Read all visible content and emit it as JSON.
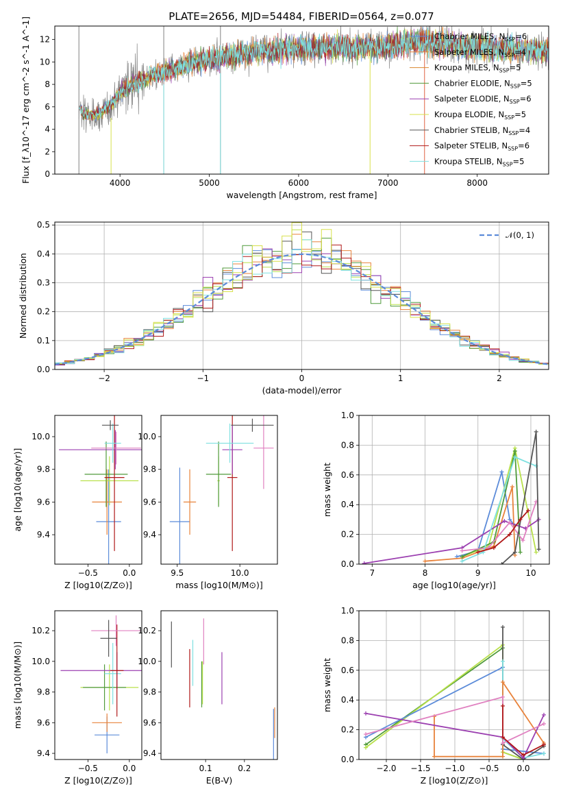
{
  "title": "PLATE=2656, MJD=54484, FIBERID=0564, z=0.077",
  "colors": {
    "chabrier_miles": "#5b8bd9",
    "salpeter_miles": "#e8823a",
    "kroupa_miles": "#d9862e",
    "chabrier_elodie": "#4f9a3a",
    "salpeter_elodie": "#9b3fb0",
    "kroupa_elodie": "#d7e04a",
    "chabrier_stelib": "#555555",
    "salpeter_stelib": "#b01818",
    "kroupa_stelib": "#7ee0e0",
    "data": "#808080",
    "pink": "#e080c0",
    "lime": "#b8e04a"
  },
  "chart_data": [
    {
      "id": "spectrum",
      "type": "line",
      "title": "PLATE=2656, MJD=54484, FIBERID=0564, z=0.077",
      "xlabel": "wavelength [Angstrom, rest frame]",
      "ylabel": "Flux [f_λ10^-17 erg cm^-2 s^-1 A^-1]",
      "xlim": [
        3270,
        8800
      ],
      "ylim": [
        0,
        13.2
      ],
      "xticks": [
        "4000",
        "5000",
        "6000",
        "7000",
        "8000"
      ],
      "yticks": [
        "0",
        "2",
        "4",
        "6",
        "8",
        "10",
        "12"
      ],
      "grid": false,
      "legend_position": "top-right",
      "legend": [
        "Chabrier MILES, N_SSP=6",
        "Salpeter MILES, N_SSP=4",
        "Kroupa MILES, N_SSP=5",
        "Chabrier ELODIE, N_SSP=5",
        "Salpeter ELODIE, N_SSP=6",
        "Kroupa ELODIE, N_SSP=5",
        "Chabrier STELIB, N_SSP=4",
        "Salpeter STELIB, N_SSP=6",
        "Kroupa STELIB, N_SSP=5"
      ],
      "continuum": {
        "x": [
          3540,
          3600,
          3700,
          3800,
          3900,
          4000,
          4200,
          4400,
          4600,
          4800,
          5000,
          5200,
          5500,
          5800,
          6000,
          6300,
          6600,
          7000,
          7300,
          7500,
          7800,
          8000,
          8300,
          8500,
          8800
        ],
        "y": [
          5.8,
          5.4,
          5.2,
          5.6,
          6.2,
          7.3,
          8.3,
          8.9,
          9.4,
          9.9,
          10.2,
          10.5,
          10.9,
          11.1,
          11.2,
          11.3,
          11.3,
          11.4,
          11.8,
          11.7,
          11.4,
          11.3,
          11.2,
          11.1,
          11.0
        ]
      }
    },
    {
      "id": "residuals",
      "type": "line",
      "xlabel": "(data-model)/error",
      "ylabel": "Normed distribution",
      "xlim": [
        -2.5,
        2.5
      ],
      "ylim": [
        0,
        0.51
      ],
      "xticks": [
        "−2",
        "−1",
        "0",
        "1",
        "2"
      ],
      "yticks": [
        "0.0",
        "0.1",
        "0.2",
        "0.3",
        "0.4",
        "0.5"
      ],
      "grid": true,
      "legend_position": "top-right",
      "legend": [
        "𝒩(0, 1)"
      ],
      "bin_width": 0.1
    },
    {
      "id": "age_vs_Z",
      "type": "scatter",
      "xlabel": "Z [log10(Z/Z⊙)]",
      "ylabel": "age  [log10(age/yr)]",
      "xlim": [
        -0.9,
        0.15
      ],
      "ylim": [
        9.22,
        10.13
      ],
      "xticks": [
        "−0.5",
        "0.0"
      ],
      "yticks": [
        "9.4",
        "9.6",
        "9.8",
        "10.0"
      ],
      "series": [
        {
          "color": "#5b8bd9",
          "x": -0.25,
          "y": 9.48,
          "xerr": 0.15,
          "yerr": 0.32
        },
        {
          "color": "#e8823a",
          "x": -0.27,
          "y": 9.6,
          "xerr": 0.18,
          "yerr": 0.2
        },
        {
          "color": "#b8e04a",
          "x": -0.24,
          "y": 9.73,
          "xerr": 0.35,
          "yerr": 0.15
        },
        {
          "color": "#4f9a3a",
          "x": -0.28,
          "y": 9.77,
          "xerr": 0.26,
          "yerr": 0.2
        },
        {
          "color": "#b01818",
          "x": -0.18,
          "y": 9.75,
          "xerr": 0.12,
          "yerr": 0.45
        },
        {
          "color": "#9b3fb0",
          "x": -0.17,
          "y": 9.92,
          "xerr": 0.68,
          "yerr": 0.12
        },
        {
          "color": "#e080c0",
          "x": -0.16,
          "y": 9.93,
          "xerr": 0.3,
          "yerr": 0.1
        },
        {
          "color": "#7ee0e0",
          "x": -0.2,
          "y": 9.96,
          "xerr": 0.1,
          "yerr": 0.12
        },
        {
          "color": "#555555",
          "x": -0.23,
          "y": 10.07,
          "xerr": 0.1,
          "yerr": 0.03
        }
      ]
    },
    {
      "id": "age_vs_mass",
      "type": "scatter",
      "xlabel": "mass [log10(M/M⊙)]",
      "xlim": [
        9.37,
        10.3
      ],
      "ylim": [
        9.22,
        10.13
      ],
      "xticks": [
        "9.5",
        "10.0"
      ],
      "yticks": [
        "9.4",
        "9.6",
        "9.8",
        "10.0"
      ],
      "series": [
        {
          "color": "#5b8bd9",
          "x": 9.52,
          "y": 9.48,
          "xerr": 0.08,
          "yerr": 0.33
        },
        {
          "color": "#e8823a",
          "x": 9.6,
          "y": 9.6,
          "xerr": 0.05,
          "yerr": 0.2
        },
        {
          "color": "#b8e04a",
          "x": 9.83,
          "y": 9.73,
          "xerr": 0.01,
          "yerr": 0.15
        },
        {
          "color": "#4f9a3a",
          "x": 9.83,
          "y": 9.77,
          "xerr": 0.1,
          "yerr": 0.2
        },
        {
          "color": "#b01818",
          "x": 9.94,
          "y": 9.75,
          "xerr": 0.04,
          "yerr": 0.45
        },
        {
          "color": "#9b3fb0",
          "x": 9.94,
          "y": 9.92,
          "xerr": 0.08,
          "yerr": 0.15
        },
        {
          "color": "#e080c0",
          "x": 10.19,
          "y": 9.93,
          "xerr": 0.08,
          "yerr": 0.25
        },
        {
          "color": "#7ee0e0",
          "x": 9.92,
          "y": 9.96,
          "xerr": 0.19,
          "yerr": 0.12
        },
        {
          "color": "#555555",
          "x": 10.1,
          "y": 10.07,
          "xerr": 0.17,
          "yerr": 0.04
        }
      ]
    },
    {
      "id": "massweight_vs_age",
      "type": "line",
      "xlabel": "age  [log10(age/yr)]",
      "ylabel": "mass weight",
      "xlim": [
        6.75,
        10.35
      ],
      "ylim": [
        0,
        1.0
      ],
      "xticks": [
        "7",
        "8",
        "9",
        "10"
      ],
      "yticks": [
        "0.0",
        "0.2",
        "0.4",
        "0.6",
        "0.8",
        "1.0"
      ],
      "grid": true,
      "series": [
        {
          "color": "#5b8bd9",
          "x": [
            8.6,
            9.0,
            9.45,
            9.6,
            9.7
          ],
          "y": [
            0.05,
            0.09,
            0.62,
            0.3,
            0.26
          ]
        },
        {
          "color": "#e8823a",
          "x": [
            8.0,
            8.7,
            9.3,
            9.65,
            9.7
          ],
          "y": [
            0.02,
            0.04,
            0.12,
            0.52,
            0.06
          ]
        },
        {
          "color": "#b8e04a",
          "x": [
            8.7,
            9.2,
            9.7,
            10.1
          ],
          "y": [
            0.05,
            0.12,
            0.78,
            0.08
          ]
        },
        {
          "color": "#4f9a3a",
          "x": [
            8.7,
            9.3,
            9.7,
            9.8
          ],
          "y": [
            0.05,
            0.15,
            0.76,
            0.08
          ]
        },
        {
          "color": "#9b3fb0",
          "x": [
            6.85,
            8.7,
            9.5,
            9.9,
            10.15
          ],
          "y": [
            0.005,
            0.11,
            0.29,
            0.24,
            0.3
          ]
        },
        {
          "color": "#e080c0",
          "x": [
            8.7,
            9.2,
            9.6,
            9.85,
            10.1
          ],
          "y": [
            0.09,
            0.11,
            0.28,
            0.16,
            0.42
          ]
        },
        {
          "color": "#7ee0e0",
          "x": [
            8.7,
            9.1,
            9.7,
            10.1
          ],
          "y": [
            0.02,
            0.08,
            0.72,
            0.66
          ]
        },
        {
          "color": "#555555",
          "x": [
            9.45,
            9.7,
            10.1,
            10.15
          ],
          "y": [
            0.0,
            0.08,
            0.89,
            0.1
          ]
        },
        {
          "color": "#b01818",
          "x": [
            9.0,
            9.3,
            9.6,
            9.8,
            9.95
          ],
          "y": [
            0.08,
            0.11,
            0.2,
            0.3,
            0.36
          ]
        }
      ]
    },
    {
      "id": "mass_vs_Z",
      "type": "scatter",
      "xlabel": "Z [log10(Z/Z⊙)]",
      "ylabel": "mass [log10(M/M⊙)]",
      "xlim": [
        -0.9,
        0.15
      ],
      "ylim": [
        9.36,
        10.33
      ],
      "xticks": [
        "−0.5",
        "0.0"
      ],
      "yticks": [
        "9.4",
        "9.6",
        "9.8",
        "10.0",
        "10.2"
      ],
      "series": [
        {
          "color": "#5b8bd9",
          "x": -0.27,
          "y": 9.52,
          "xerr": 0.15,
          "yerr": 0.12
        },
        {
          "color": "#e8823a",
          "x": -0.27,
          "y": 9.6,
          "xerr": 0.18,
          "yerr": 0.06
        },
        {
          "color": "#b8e04a",
          "x": -0.24,
          "y": 9.83,
          "xerr": 0.35,
          "yerr": 0.15
        },
        {
          "color": "#4f9a3a",
          "x": -0.3,
          "y": 9.83,
          "xerr": 0.26,
          "yerr": 0.15
        },
        {
          "color": "#7ee0e0",
          "x": -0.2,
          "y": 9.92,
          "xerr": 0.1,
          "yerr": 0.2
        },
        {
          "color": "#9b3fb0",
          "x": -0.15,
          "y": 9.94,
          "xerr": 0.68,
          "yerr": 0.12
        },
        {
          "color": "#b01818",
          "x": -0.15,
          "y": 9.94,
          "xerr": 0.08,
          "yerr": 0.3
        },
        {
          "color": "#e080c0",
          "x": -0.16,
          "y": 10.2,
          "xerr": 0.3,
          "yerr": 0.1
        },
        {
          "color": "#555555",
          "x": -0.25,
          "y": 10.15,
          "xerr": 0.1,
          "yerr": 0.12
        }
      ]
    },
    {
      "id": "mass_vs_ebv",
      "type": "scatter",
      "xlabel": "E(B-V)",
      "xlim": [
        -0.015,
        0.285
      ],
      "ylim": [
        9.36,
        10.33
      ],
      "xticks": [
        "0.1",
        "0.2"
      ],
      "yticks": [
        "9.4",
        "9.6",
        "9.8",
        "10.0",
        "10.2"
      ],
      "series": [
        {
          "color": "#555555",
          "x": 0.012,
          "y": 10.11,
          "yerr": 0.15
        },
        {
          "color": "#b01818",
          "x": 0.059,
          "y": 9.89,
          "yerr": 0.19
        },
        {
          "color": "#7ee0e0",
          "x": 0.067,
          "y": 9.99,
          "yerr": 0.15
        },
        {
          "color": "#4f9a3a",
          "x": 0.09,
          "y": 9.85,
          "yerr": 0.15
        },
        {
          "color": "#b8e04a",
          "x": 0.092,
          "y": 9.86,
          "yerr": 0.14
        },
        {
          "color": "#e080c0",
          "x": 0.095,
          "y": 10.13,
          "yerr": 0.15
        },
        {
          "color": "#9b3fb0",
          "x": 0.142,
          "y": 9.89,
          "yerr": 0.17
        },
        {
          "color": "#5b8bd9",
          "x": 0.275,
          "y": 9.52,
          "yerr": 0.17
        },
        {
          "color": "#e8823a",
          "x": 0.278,
          "y": 9.6,
          "yerr": 0.1
        }
      ]
    },
    {
      "id": "massweight_vs_Z",
      "type": "line",
      "xlabel": "Z [log10(Z/Z⊙)]",
      "ylabel": "mass weight",
      "xlim": [
        -2.4,
        0.38
      ],
      "ylim": [
        0,
        1.0
      ],
      "xticks": [
        "−2.0",
        "−1.5",
        "−1.0",
        "−0.5",
        "0.0"
      ],
      "yticks": [
        "0.0",
        "0.2",
        "0.4",
        "0.6",
        "0.8",
        "1.0"
      ],
      "grid": true,
      "series": [
        {
          "color": "#4f9a3a",
          "x": [
            -2.3,
            -0.3,
            -0.3,
            0.0
          ],
          "y": [
            0.1,
            0.75,
            0.05,
            0.0
          ]
        },
        {
          "color": "#b8e04a",
          "x": [
            -2.3,
            -0.3,
            -0.3,
            0.0
          ],
          "y": [
            0.08,
            0.77,
            0.05,
            0.0
          ]
        },
        {
          "color": "#5b8bd9",
          "x": [
            -2.3,
            -0.3,
            -0.3,
            0.3
          ],
          "y": [
            0.15,
            0.62,
            0.07,
            0.04
          ]
        },
        {
          "color": "#555555",
          "x": [
            -0.3,
            -0.3,
            0.0,
            0.3
          ],
          "y": [
            0.89,
            0.1,
            0.0,
            0.09
          ]
        },
        {
          "color": "#7ee0e0",
          "x": [
            -0.3,
            -0.3,
            0.0,
            0.3
          ],
          "y": [
            0.66,
            0.14,
            0.01,
            0.04
          ]
        },
        {
          "color": "#e8823a",
          "x": [
            -1.3,
            -1.3,
            -0.3,
            -0.3,
            0.3
          ],
          "y": [
            0.29,
            0.02,
            0.02,
            0.52,
            0.11
          ]
        },
        {
          "color": "#9b3fb0",
          "x": [
            -2.3,
            -0.3,
            0.0,
            0.3
          ],
          "y": [
            0.31,
            0.15,
            0.01,
            0.3
          ]
        },
        {
          "color": "#e080c0",
          "x": [
            -2.3,
            -0.3,
            -0.3,
            0.3
          ],
          "y": [
            0.17,
            0.42,
            0.11,
            0.24
          ]
        },
        {
          "color": "#b01818",
          "x": [
            -0.3,
            -0.3,
            0.0,
            0.3
          ],
          "y": [
            0.36,
            0.15,
            0.03,
            0.1
          ]
        }
      ]
    }
  ]
}
